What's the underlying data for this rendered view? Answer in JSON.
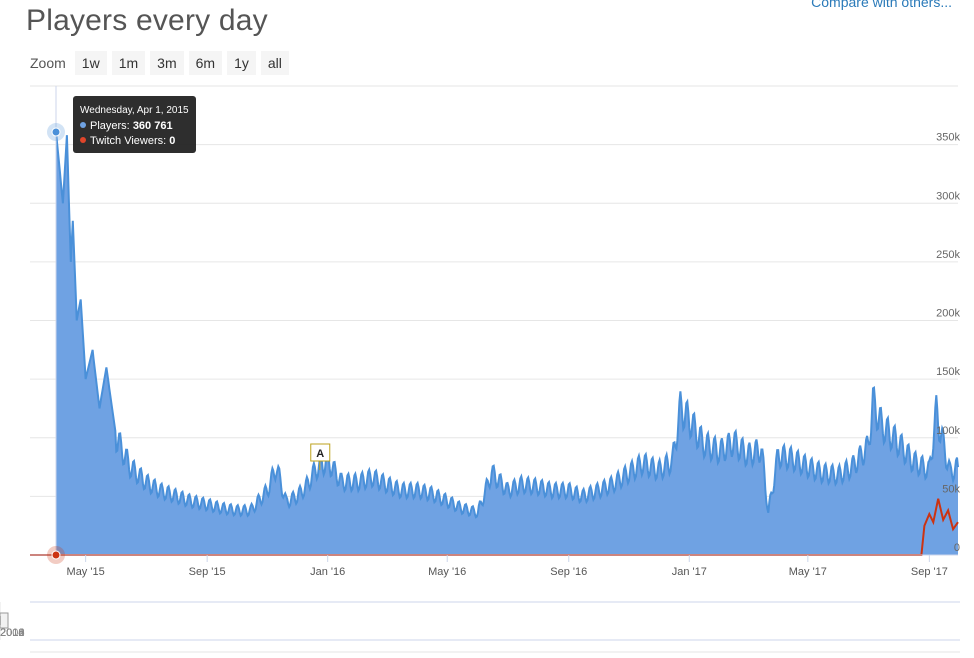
{
  "header": {
    "title": "Players every day",
    "compare_link": "Compare with others..."
  },
  "zoom": {
    "label": "Zoom",
    "buttons": [
      "1w",
      "1m",
      "3m",
      "6m",
      "1y",
      "all"
    ]
  },
  "tooltip": {
    "date": "Wednesday, Apr 1, 2015",
    "players_label": "Players:",
    "players_value": "360 761",
    "twitch_label": "Twitch Viewers:",
    "twitch_value": "0"
  },
  "colors": {
    "players": "#4a90d9",
    "players_fill": "#6fa2e3",
    "twitch": "#cc3311",
    "navigator_fill": "#ccd6eb"
  },
  "annotation": {
    "flag_label": "A",
    "date": "2015-12-25"
  },
  "chart_data": {
    "type": "area",
    "title": "Players every day",
    "x_axis": {
      "type": "date",
      "range": [
        "2015-04-01",
        "2017-09-30"
      ],
      "tick_labels": [
        "May '15",
        "Sep '15",
        "Jan '16",
        "May '16",
        "Sep '16",
        "Jan '17",
        "May '17",
        "Sep '17"
      ]
    },
    "y_axis": {
      "range": [
        0,
        400000
      ],
      "tick_values": [
        0,
        50000,
        100000,
        150000,
        200000,
        250000,
        300000,
        350000
      ],
      "tick_labels": [
        "0",
        "50k",
        "100k",
        "150k",
        "200k",
        "250k",
        "300k",
        "350k"
      ],
      "position": "right"
    },
    "grid": true,
    "series": [
      {
        "name": "Players",
        "points": [
          [
            "2015-04-01",
            360761
          ],
          [
            "2015-04-08",
            300000
          ],
          [
            "2015-04-12",
            358000
          ],
          [
            "2015-04-16",
            250000
          ],
          [
            "2015-04-18",
            285000
          ],
          [
            "2015-04-22",
            200000
          ],
          [
            "2015-04-26",
            218000
          ],
          [
            "2015-05-01",
            150000
          ],
          [
            "2015-05-08",
            175000
          ],
          [
            "2015-05-15",
            125000
          ],
          [
            "2015-05-22",
            160000
          ],
          [
            "2015-06-01",
            100000
          ],
          [
            "2015-06-15",
            75000
          ],
          [
            "2015-07-01",
            62000
          ],
          [
            "2015-07-15",
            55000
          ],
          [
            "2015-08-01",
            50000
          ],
          [
            "2015-08-15",
            46000
          ],
          [
            "2015-09-01",
            43000
          ],
          [
            "2015-09-15",
            40000
          ],
          [
            "2015-10-01",
            38000
          ],
          [
            "2015-10-15",
            38000
          ],
          [
            "2015-11-01",
            55000
          ],
          [
            "2015-11-10",
            75000
          ],
          [
            "2015-11-20",
            45000
          ],
          [
            "2015-12-01",
            50000
          ],
          [
            "2015-12-10",
            58000
          ],
          [
            "2015-12-20",
            73000
          ],
          [
            "2016-01-01",
            80000
          ],
          [
            "2016-01-15",
            62000
          ],
          [
            "2016-02-01",
            62000
          ],
          [
            "2016-02-15",
            66000
          ],
          [
            "2016-03-01",
            60000
          ],
          [
            "2016-03-15",
            55000
          ],
          [
            "2016-04-01",
            55000
          ],
          [
            "2016-04-15",
            52000
          ],
          [
            "2016-05-01",
            46000
          ],
          [
            "2016-05-15",
            40000
          ],
          [
            "2016-06-01",
            36000
          ],
          [
            "2016-06-15",
            70000
          ],
          [
            "2016-07-01",
            55000
          ],
          [
            "2016-07-15",
            60000
          ],
          [
            "2016-08-01",
            58000
          ],
          [
            "2016-08-15",
            55000
          ],
          [
            "2016-09-01",
            55000
          ],
          [
            "2016-09-15",
            50000
          ],
          [
            "2016-10-01",
            55000
          ],
          [
            "2016-10-15",
            60000
          ],
          [
            "2016-11-01",
            70000
          ],
          [
            "2016-11-15",
            78000
          ],
          [
            "2016-12-01",
            72000
          ],
          [
            "2016-12-15",
            80000
          ],
          [
            "2016-12-23",
            125000
          ],
          [
            "2017-01-01",
            115000
          ],
          [
            "2017-01-15",
            95000
          ],
          [
            "2017-02-01",
            88000
          ],
          [
            "2017-02-15",
            96000
          ],
          [
            "2017-03-01",
            85000
          ],
          [
            "2017-03-15",
            90000
          ],
          [
            "2017-03-22",
            36000
          ],
          [
            "2017-04-01",
            85000
          ],
          [
            "2017-04-15",
            82000
          ],
          [
            "2017-05-01",
            75000
          ],
          [
            "2017-05-15",
            70000
          ],
          [
            "2017-06-01",
            68000
          ],
          [
            "2017-06-15",
            75000
          ],
          [
            "2017-07-01",
            92000
          ],
          [
            "2017-07-06",
            130000
          ],
          [
            "2017-07-15",
            110000
          ],
          [
            "2017-08-01",
            95000
          ],
          [
            "2017-08-15",
            80000
          ],
          [
            "2017-09-01",
            72000
          ],
          [
            "2017-09-08",
            122000
          ],
          [
            "2017-09-15",
            95000
          ],
          [
            "2017-09-22",
            70000
          ],
          [
            "2017-09-30",
            75000
          ]
        ]
      },
      {
        "name": "Twitch Viewers",
        "points": [
          [
            "2015-04-01",
            0
          ],
          [
            "2017-08-24",
            0
          ],
          [
            "2017-08-27",
            25000
          ],
          [
            "2017-09-01",
            35000
          ],
          [
            "2017-09-05",
            28000
          ],
          [
            "2017-09-10",
            48000
          ],
          [
            "2017-09-15",
            30000
          ],
          [
            "2017-09-20",
            38000
          ],
          [
            "2017-09-25",
            22000
          ],
          [
            "2017-09-30",
            28000
          ]
        ]
      }
    ]
  },
  "navigator": {
    "labels": [
      "2008",
      "2010",
      "2012",
      "2014",
      "2016"
    ],
    "range": [
      "2007-06-01",
      "2017-12-31"
    ],
    "selected_range": [
      "2015-04-01",
      "2017-09-30"
    ]
  }
}
